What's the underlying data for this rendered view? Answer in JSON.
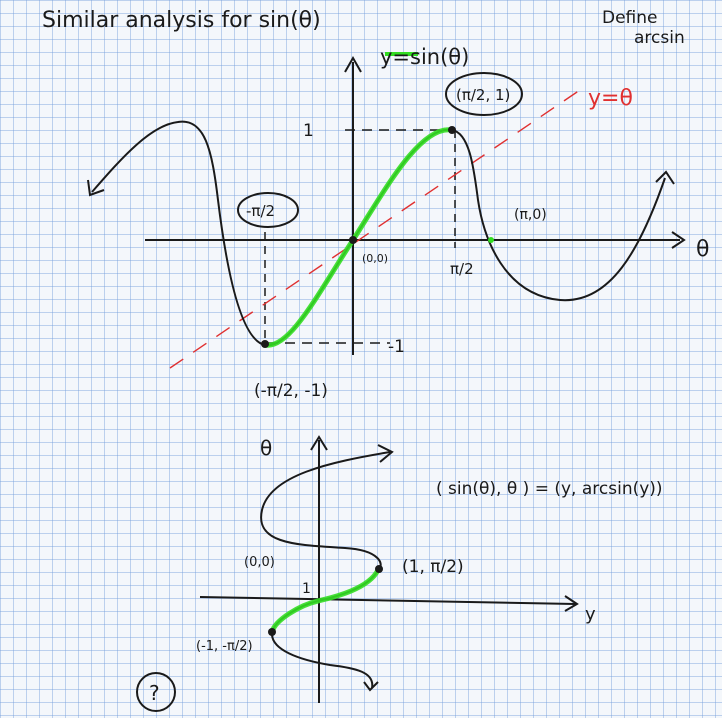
{
  "header": {
    "title": "Similar analysis for sin(θ)",
    "note_line1": "Define",
    "note_line2": "arcsin"
  },
  "top_graph": {
    "curve_label": "y=sin(θ)",
    "line_label": "y=θ",
    "axis_label_x": "θ",
    "tick_y": "1",
    "tick_y_neg": "-1",
    "tick_x_pi2": "π/2",
    "origin_label": "(0,0)",
    "point_max": "(π/2, 1)",
    "point_neg_pi2": "-π/2",
    "point_pi": "(π,0)",
    "point_min": "(-π/2, -1)",
    "colors": {
      "curve": "#1a1a1a",
      "highlight": "#33dd22",
      "identity_line": "#e03030"
    }
  },
  "bottom_graph": {
    "axis_label_vertical": "θ",
    "axis_label_horizontal": "y",
    "tick_y": "1",
    "origin_label": "(0,0)",
    "point_top": "(1, π/2)",
    "point_bottom": "(-1, -π/2)",
    "relation": "( sin(θ), θ ) = (y, arcsin(y))",
    "question": "?"
  }
}
